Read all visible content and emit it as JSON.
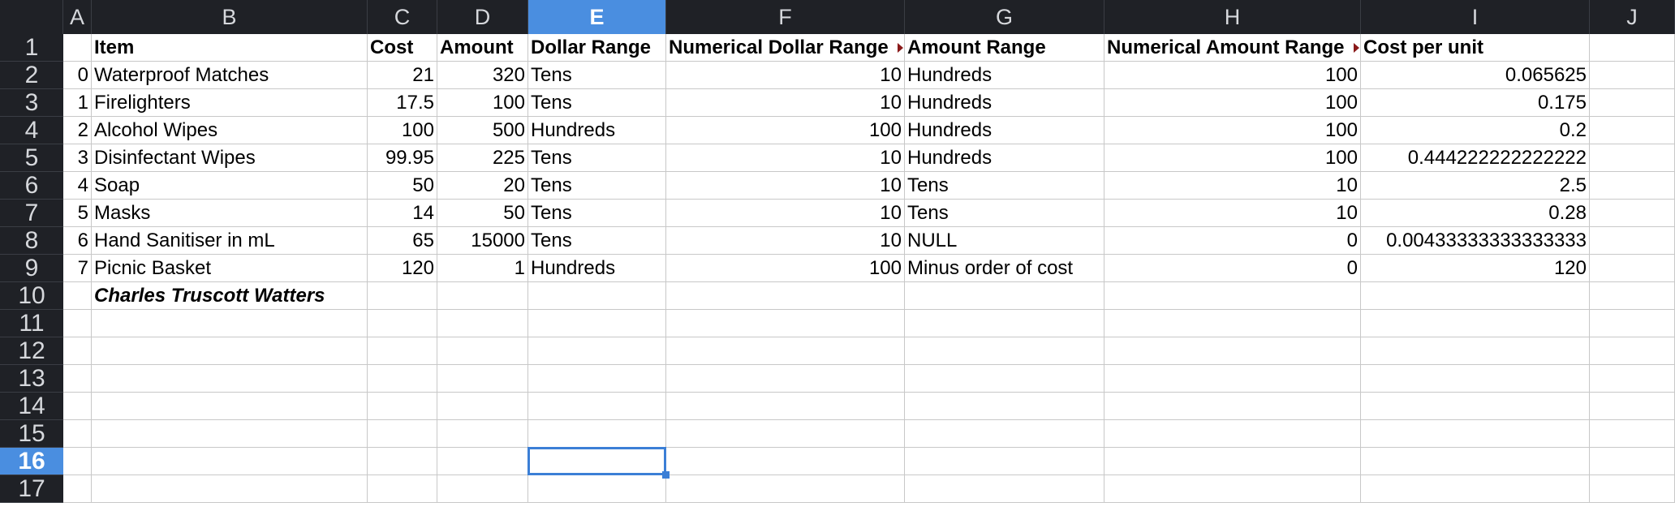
{
  "columns": [
    "A",
    "B",
    "C",
    "D",
    "E",
    "F",
    "G",
    "H",
    "I",
    "J"
  ],
  "rows": [
    "1",
    "2",
    "3",
    "4",
    "5",
    "6",
    "7",
    "8",
    "9",
    "10",
    "11",
    "12",
    "13",
    "14",
    "15",
    "16",
    "17"
  ],
  "selected_column": "E",
  "selected_row": "16",
  "cells": [
    [
      "",
      "Item",
      "Cost",
      "Amount",
      "Dollar Range",
      "Numerical Dollar Range",
      "Amount Range",
      "Numerical Amount Range",
      "Cost per unit",
      ""
    ],
    [
      "0",
      "Waterproof Matches",
      "21",
      "320",
      "Tens",
      "10",
      "Hundreds",
      "100",
      "0.065625",
      ""
    ],
    [
      "1",
      "Firelighters",
      "17.5",
      "100",
      "Tens",
      "10",
      "Hundreds",
      "100",
      "0.175",
      ""
    ],
    [
      "2",
      "Alcohol Wipes",
      "100",
      "500",
      "Hundreds",
      "100",
      "Hundreds",
      "100",
      "0.2",
      ""
    ],
    [
      "3",
      "Disinfectant Wipes",
      "99.95",
      "225",
      "Tens",
      "10",
      "Hundreds",
      "100",
      "0.444222222222222",
      ""
    ],
    [
      "4",
      "Soap",
      "50",
      "20",
      "Tens",
      "10",
      "Tens",
      "10",
      "2.5",
      ""
    ],
    [
      "5",
      "Masks",
      "14",
      "50",
      "Tens",
      "10",
      "Tens",
      "10",
      "0.28",
      ""
    ],
    [
      "6",
      "Hand Sanitiser in mL",
      "65",
      "15000",
      "Tens",
      "10",
      "NULL",
      "0",
      "0.00433333333333333",
      ""
    ],
    [
      "7",
      "Picnic Basket",
      "120",
      "1",
      "Hundreds",
      "100",
      "Minus order of cost",
      "0",
      "120",
      ""
    ],
    [
      "",
      "Charles Truscott Watters",
      "",
      "",
      "",
      "",
      "",
      "",
      "",
      ""
    ],
    [
      "",
      "",
      "",
      "",
      "",
      "",
      "",
      "",
      "",
      ""
    ],
    [
      "",
      "",
      "",
      "",
      "",
      "",
      "",
      "",
      "",
      ""
    ],
    [
      "",
      "",
      "",
      "",
      "",
      "",
      "",
      "",
      "",
      ""
    ],
    [
      "",
      "",
      "",
      "",
      "",
      "",
      "",
      "",
      "",
      ""
    ],
    [
      "",
      "",
      "",
      "",
      "",
      "",
      "",
      "",
      "",
      ""
    ],
    [
      "",
      "",
      "",
      "",
      "",
      "",
      "",
      "",
      "",
      ""
    ],
    [
      "",
      "",
      "",
      "",
      "",
      "",
      "",
      "",
      "",
      ""
    ]
  ]
}
